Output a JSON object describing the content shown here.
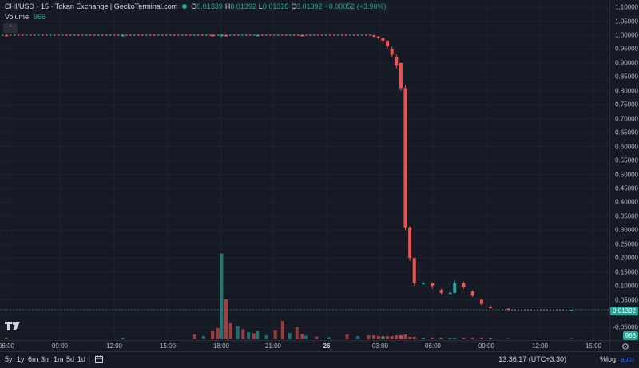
{
  "legend": {
    "title": "CHI/USD · 15 · Tokan Exchange | GeckoTerminal.com",
    "ohlc": [
      {
        "k": "O",
        "v": "0.01339"
      },
      {
        "k": "H",
        "v": "0.01392"
      },
      {
        "k": "L",
        "v": "0.01338"
      },
      {
        "k": "C",
        "v": "0.01392"
      }
    ],
    "change": "+0.00052 (+3.90%)",
    "volume_label": "Volume",
    "volume_value": "966"
  },
  "colors": {
    "up": "#26a69a",
    "down": "#ef5350",
    "background": "#161a25",
    "accent": "#2962ff"
  },
  "icons": {
    "collapse": "chevron-up-icon",
    "logo": "tradingview-logo-icon",
    "settings": "gear-icon",
    "range": "calendar-range-icon"
  },
  "y_axis": {
    "labels": [
      "1.10000",
      "1.05000",
      "1.00000",
      "0.95000",
      "0.90000",
      "0.85000",
      "0.80000",
      "0.75000",
      "0.70000",
      "0.65000",
      "0.60000",
      "0.55000",
      "0.50000",
      "0.45000",
      "0.40000",
      "0.35000",
      "0.30000",
      "0.25000",
      "0.20000",
      "0.15000",
      "0.10000",
      "0.05000",
      "0.00000",
      "-0.05000"
    ],
    "last_price": "0.01392",
    "volume_badge": "966"
  },
  "x_axis": {
    "labels": [
      {
        "text": "06:00",
        "bold": false
      },
      {
        "text": "09:00",
        "bold": false
      },
      {
        "text": "12:00",
        "bold": false
      },
      {
        "text": "15:00",
        "bold": false
      },
      {
        "text": "18:00",
        "bold": false
      },
      {
        "text": "21:00",
        "bold": false
      },
      {
        "text": "26",
        "bold": true
      },
      {
        "text": "03:00",
        "bold": false
      },
      {
        "text": "06:00",
        "bold": false
      },
      {
        "text": "09:00",
        "bold": false
      },
      {
        "text": "12:00",
        "bold": false
      },
      {
        "text": "15:00",
        "bold": false
      }
    ]
  },
  "toolbar": {
    "timeframes": [
      "5y",
      "1y",
      "6m",
      "3m",
      "1m",
      "5d",
      "1d"
    ],
    "time": "13:36:17 (UTC+3:30)",
    "pct": "%",
    "log": "log",
    "auto": "auto"
  },
  "chart_data": {
    "type": "candlestick",
    "title": "CHI/USD · 15 · Tokan Exchange",
    "ylim": [
      -0.07,
      1.1
    ],
    "x_range": [
      "06:00",
      "15:00 (next day)"
    ],
    "grid": true,
    "candles": [
      {
        "t": 6.0,
        "o": 1.0,
        "c": 0.999,
        "h": 1.002,
        "l": 0.997,
        "vol": 0.3
      },
      {
        "t": 12.5,
        "o": 0.999,
        "c": 1.0,
        "h": 1.002,
        "l": 0.997,
        "vol": 0.3
      },
      {
        "t": 17.5,
        "o": 1.0,
        "c": 0.999,
        "h": 1.003,
        "l": 0.996,
        "vol": 2.0
      },
      {
        "t": 18.0,
        "o": 0.999,
        "c": 1.0,
        "h": 1.003,
        "l": 0.996,
        "vol": 21.5
      },
      {
        "t": 18.25,
        "o": 1.0,
        "c": 0.999,
        "h": 1.002,
        "l": 0.997,
        "vol": 10.0
      },
      {
        "t": 20.0,
        "o": 0.999,
        "c": 1.0,
        "h": 1.003,
        "l": 0.997,
        "vol": 2.0
      },
      {
        "t": 22.5,
        "o": 1.0,
        "c": 0.999,
        "h": 1.002,
        "l": 0.997,
        "vol": 1.3
      },
      {
        "t": 26.5,
        "o": 1.0,
        "c": 0.995,
        "h": 1.0,
        "l": 0.99,
        "vol": 1.0
      },
      {
        "t": 26.75,
        "o": 0.995,
        "c": 0.99,
        "h": 0.997,
        "l": 0.985,
        "vol": 0.8
      },
      {
        "t": 27.0,
        "o": 0.99,
        "c": 0.98,
        "h": 0.99,
        "l": 0.97,
        "vol": 0.8
      },
      {
        "t": 27.25,
        "o": 0.98,
        "c": 0.96,
        "h": 0.982,
        "l": 0.95,
        "vol": 0.8
      },
      {
        "t": 27.5,
        "o": 0.95,
        "c": 0.93,
        "h": 0.96,
        "l": 0.92,
        "vol": 0.8
      },
      {
        "t": 27.75,
        "o": 0.92,
        "c": 0.89,
        "h": 0.93,
        "l": 0.88,
        "vol": 1.0
      },
      {
        "t": 28.0,
        "o": 0.9,
        "c": 0.81,
        "h": 0.9,
        "l": 0.8,
        "vol": 1.0
      },
      {
        "t": 28.25,
        "o": 0.81,
        "c": 0.31,
        "h": 0.82,
        "l": 0.3,
        "vol": 1.2
      },
      {
        "t": 28.5,
        "o": 0.31,
        "c": 0.2,
        "h": 0.315,
        "l": 0.19,
        "vol": 0.6
      },
      {
        "t": 28.75,
        "o": 0.2,
        "c": 0.11,
        "h": 0.2,
        "l": 0.1,
        "vol": 0.6
      },
      {
        "t": 29.25,
        "o": 0.11,
        "c": 0.11,
        "h": 0.115,
        "l": 0.105,
        "vol": 0.3
      },
      {
        "t": 29.75,
        "o": 0.11,
        "c": 0.1,
        "h": 0.11,
        "l": 0.09,
        "vol": 0.3
      },
      {
        "t": 30.25,
        "o": 0.085,
        "c": 0.075,
        "h": 0.09,
        "l": 0.07,
        "vol": 0.3
      },
      {
        "t": 30.75,
        "o": 0.075,
        "c": 0.075,
        "h": 0.078,
        "l": 0.072,
        "vol": 0.2
      },
      {
        "t": 31.0,
        "o": 0.075,
        "c": 0.11,
        "h": 0.12,
        "l": 0.075,
        "vol": 0.3
      },
      {
        "t": 31.5,
        "o": 0.11,
        "c": 0.095,
        "h": 0.115,
        "l": 0.09,
        "vol": 0.3
      },
      {
        "t": 32.0,
        "o": 0.08,
        "c": 0.065,
        "h": 0.085,
        "l": 0.06,
        "vol": 0.3
      },
      {
        "t": 32.5,
        "o": 0.05,
        "c": 0.035,
        "h": 0.055,
        "l": 0.03,
        "vol": 0.3
      },
      {
        "t": 33.0,
        "o": 0.025,
        "c": 0.02,
        "h": 0.03,
        "l": 0.018,
        "vol": 0.2
      },
      {
        "t": 34.0,
        "o": 0.018,
        "c": 0.016,
        "h": 0.02,
        "l": 0.015,
        "vol": 0.1
      },
      {
        "t": 37.5,
        "o": 0.01339,
        "c": 0.01392,
        "h": 0.01392,
        "l": 0.01338,
        "vol": 0.1
      }
    ]
  }
}
